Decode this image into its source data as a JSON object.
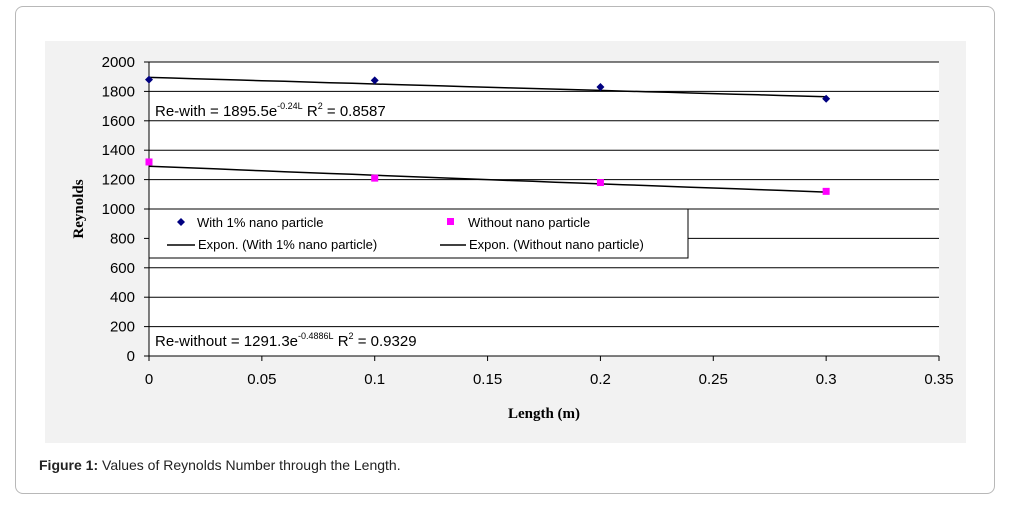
{
  "caption": {
    "label": "Figure 1:",
    "text": " Values of Reynolds Number through the Length."
  },
  "colors": {
    "series_with": "#000080",
    "series_without": "#ff00ff",
    "plot_bg": "#ffffff",
    "figure_bg": "#f2f2f2"
  },
  "chart_data": {
    "type": "scatter",
    "title": "",
    "xlabel": "Length (m)",
    "ylabel": "Reynolds",
    "xlim": [
      0,
      0.35
    ],
    "ylim": [
      0,
      2000
    ],
    "xticks": [
      "0",
      "0.05",
      "0.1",
      "0.15",
      "0.2",
      "0.25",
      "0.3",
      "0.35"
    ],
    "yticks": [
      "0",
      "200",
      "400",
      "600",
      "800",
      "1000",
      "1200",
      "1400",
      "1600",
      "1800",
      "2000"
    ],
    "grid": "horizontal",
    "series": [
      {
        "name": "With 1% nano particle",
        "marker": "diamond",
        "color": "#000080",
        "x": [
          0,
          0.1,
          0.2,
          0.3
        ],
        "y": [
          1880,
          1875,
          1830,
          1750
        ]
      },
      {
        "name": "Without nano particle",
        "marker": "square",
        "color": "#ff00ff",
        "x": [
          0,
          0.1,
          0.2,
          0.3
        ],
        "y": [
          1320,
          1210,
          1180,
          1120
        ]
      }
    ],
    "trendlines": [
      {
        "name": "Expon. (With 1% nano particle)",
        "a": 1895.5,
        "b": -0.24,
        "equation_main": "Re-with = 1895.5e",
        "equation_exp": "-0.24L",
        "equation_r2": " R",
        "equation_r2_exp": "2",
        "equation_tail": " = 0.8587"
      },
      {
        "name": "Expon. (Without nano particle)",
        "a": 1291.3,
        "b": -0.4886,
        "equation_main": "Re-without = 1291.3e",
        "equation_exp": "-0.4886L",
        "equation_r2": " R",
        "equation_r2_exp": "2",
        "equation_tail": " = 0.9329"
      }
    ],
    "legend": "inside-center",
    "legend_entries": {
      "s1": "With 1% nano particle",
      "s2": "Without nano particle",
      "t1": "Expon. (With 1% nano particle)",
      "t2": "Expon. (Without nano particle)"
    }
  }
}
